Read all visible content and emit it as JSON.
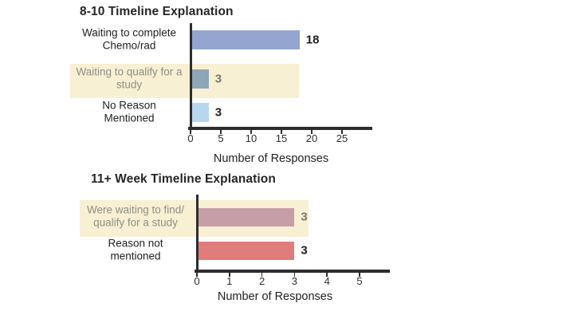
{
  "colors": {
    "background": "#ffffff",
    "axis": "#2d2d2d",
    "title_text": "#262626",
    "label_text": "#1f1f1f",
    "muted_label_text": "#8e8e86",
    "muted_value_text": "#787870",
    "highlight_band": "#f7f0d2"
  },
  "chart_data": [
    {
      "type": "bar",
      "orientation": "horizontal",
      "title": "8-10 Timeline Explanation",
      "xlabel": "Number of Responses",
      "xlim": [
        0,
        25
      ],
      "xticks": [
        0,
        5,
        10,
        15,
        20,
        25
      ],
      "grid": false,
      "legend_position": "none",
      "categories": [
        "Waiting to complete\nChemo/rad",
        "Waiting to qualify for a\nstudy",
        "No Reason\nMentioned"
      ],
      "values": [
        18,
        3,
        3
      ],
      "value_labels": [
        "18",
        "3",
        "3"
      ],
      "bar_colors": [
        "#94a5d0",
        "#8ea6b5",
        "#b8d6f0"
      ],
      "highlighted_rows": [
        1
      ]
    },
    {
      "type": "bar",
      "orientation": "horizontal",
      "title": "11+ Week Timeline Explanation",
      "xlabel": "Number of Responses",
      "xlim": [
        0,
        5
      ],
      "xticks": [
        0,
        1,
        2,
        3,
        4,
        5
      ],
      "grid": false,
      "legend_position": "none",
      "categories": [
        "Were waiting to find/\nqualify for a study",
        "Reason not\nmentioned"
      ],
      "values": [
        3,
        3
      ],
      "value_labels": [
        "3",
        "3"
      ],
      "bar_colors": [
        "#c59ea7",
        "#e07c7c"
      ],
      "highlighted_rows": [
        0
      ]
    }
  ]
}
